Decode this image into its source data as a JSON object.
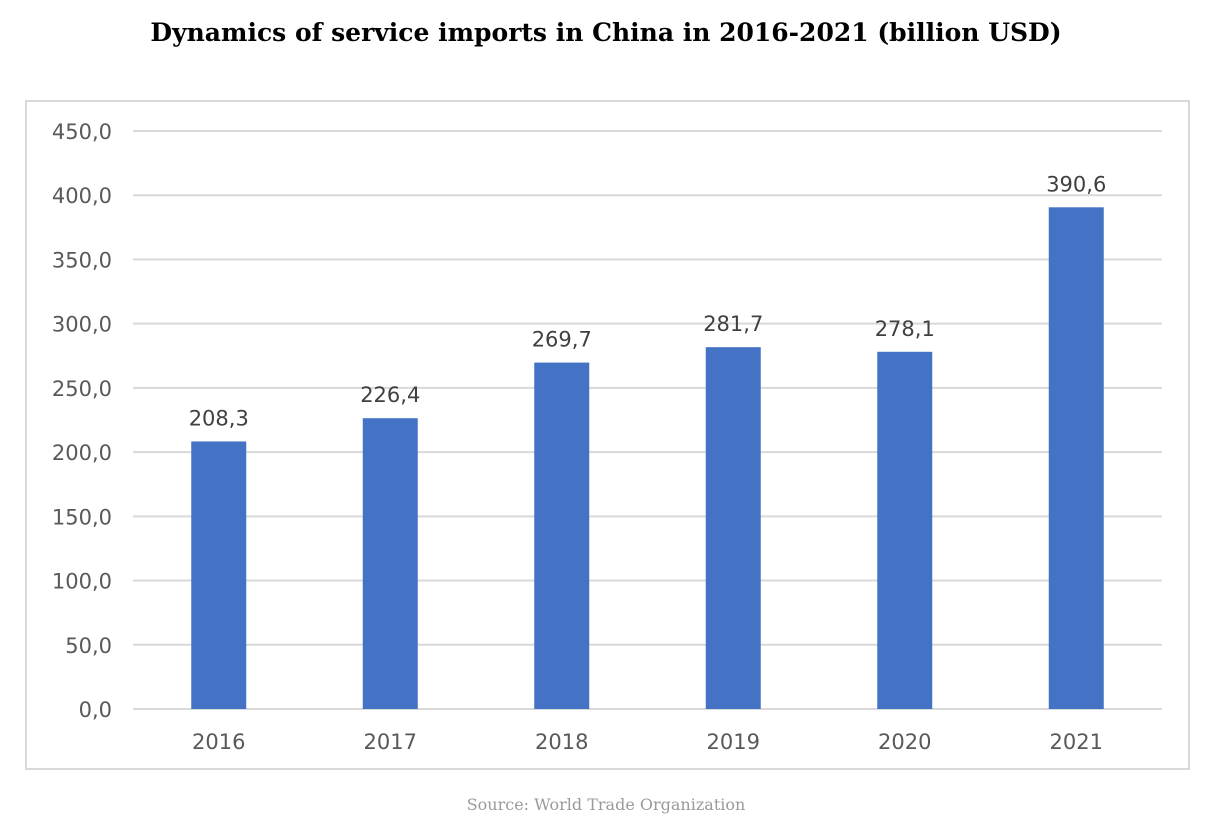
{
  "title": "Dynamics of service imports in China in 2016-2021 (billion USD)",
  "source": "Source: World Trade Organization",
  "colors": {
    "bar": "#4472c4",
    "grid": "#d9d9d9",
    "tick_text": "#595959",
    "label_text": "#404040",
    "frame": "#d9d9d9"
  },
  "chart_data": {
    "type": "bar",
    "title": "Dynamics of service imports in China in 2016-2021 (billion USD)",
    "xlabel": "",
    "ylabel": "",
    "categories": [
      "2016",
      "2017",
      "2018",
      "2019",
      "2020",
      "2021"
    ],
    "values": [
      208.3,
      226.4,
      269.7,
      281.7,
      278.1,
      390.6
    ],
    "data_labels": [
      "208,3",
      "226,4",
      "269,7",
      "281,7",
      "278,1",
      "390,6"
    ],
    "ylim": [
      0,
      450
    ],
    "yticks": [
      0,
      50,
      100,
      150,
      200,
      250,
      300,
      350,
      400,
      450
    ],
    "ytick_labels": [
      "0,0",
      "50,0",
      "100,0",
      "150,0",
      "200,0",
      "250,0",
      "300,0",
      "350,0",
      "400,0",
      "450,0"
    ],
    "grid": true,
    "legend": "none"
  }
}
